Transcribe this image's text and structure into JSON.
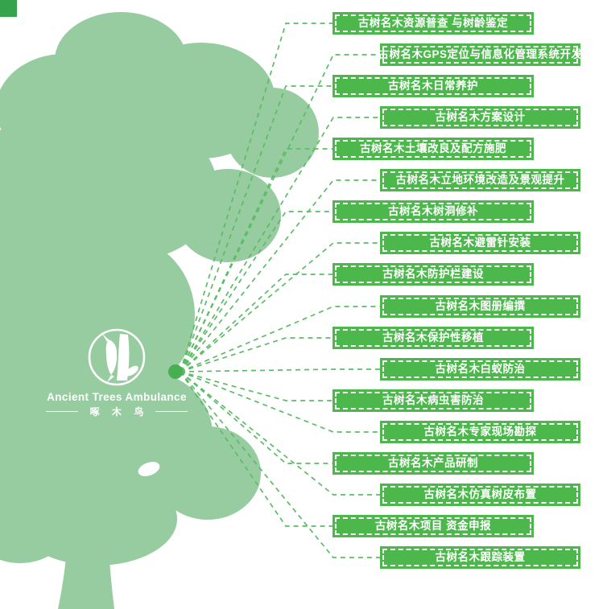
{
  "colors": {
    "tree_fill": "#97CBA0",
    "banner_fill": "#4CB84C",
    "banner_border": "#FFFFFF",
    "banner_text": "#FFFFFF",
    "connector": "#5CBC66",
    "hub_dot": "#48AF50",
    "corner_square": "#35A34C",
    "logo_color": "#FFFFFF"
  },
  "logo": {
    "title": "Ancient Trees Ambulance",
    "subtitle": "啄 木 鸟",
    "emblem_icon": "woodpecker-on-trunk-icon"
  },
  "services": [
    {
      "label": "古树名木资源普查 与树龄鉴定",
      "side": "left"
    },
    {
      "label": "古树名木GPS定位与信息化管理系统开发",
      "side": "right"
    },
    {
      "label": "古树名木日常养护",
      "side": "left"
    },
    {
      "label": "古树名木方案设计",
      "side": "right"
    },
    {
      "label": "古树名木土壤改良及配方施肥",
      "side": "left"
    },
    {
      "label": "古树名木立地环境改造及景观提升",
      "side": "right"
    },
    {
      "label": "古树名木树洞修补",
      "side": "left"
    },
    {
      "label": "古树名木避雷针安装",
      "side": "right"
    },
    {
      "label": "古树名木防护栏建设",
      "side": "left"
    },
    {
      "label": "古树名木图册编撰",
      "side": "right"
    },
    {
      "label": "古树名木保护性移植",
      "side": "left"
    },
    {
      "label": "古树名木白蚁防治",
      "side": "right"
    },
    {
      "label": "古树名木病虫害防治",
      "side": "left"
    },
    {
      "label": "古树名木专家现场勘探",
      "side": "right"
    },
    {
      "label": "古树名木产品研制",
      "side": "left"
    },
    {
      "label": "古树名木仿真树皮布置",
      "side": "right"
    },
    {
      "label": "古树名木项目 资金申报",
      "side": "left"
    },
    {
      "label": "古树名木跟踪装置",
      "side": "right"
    }
  ]
}
